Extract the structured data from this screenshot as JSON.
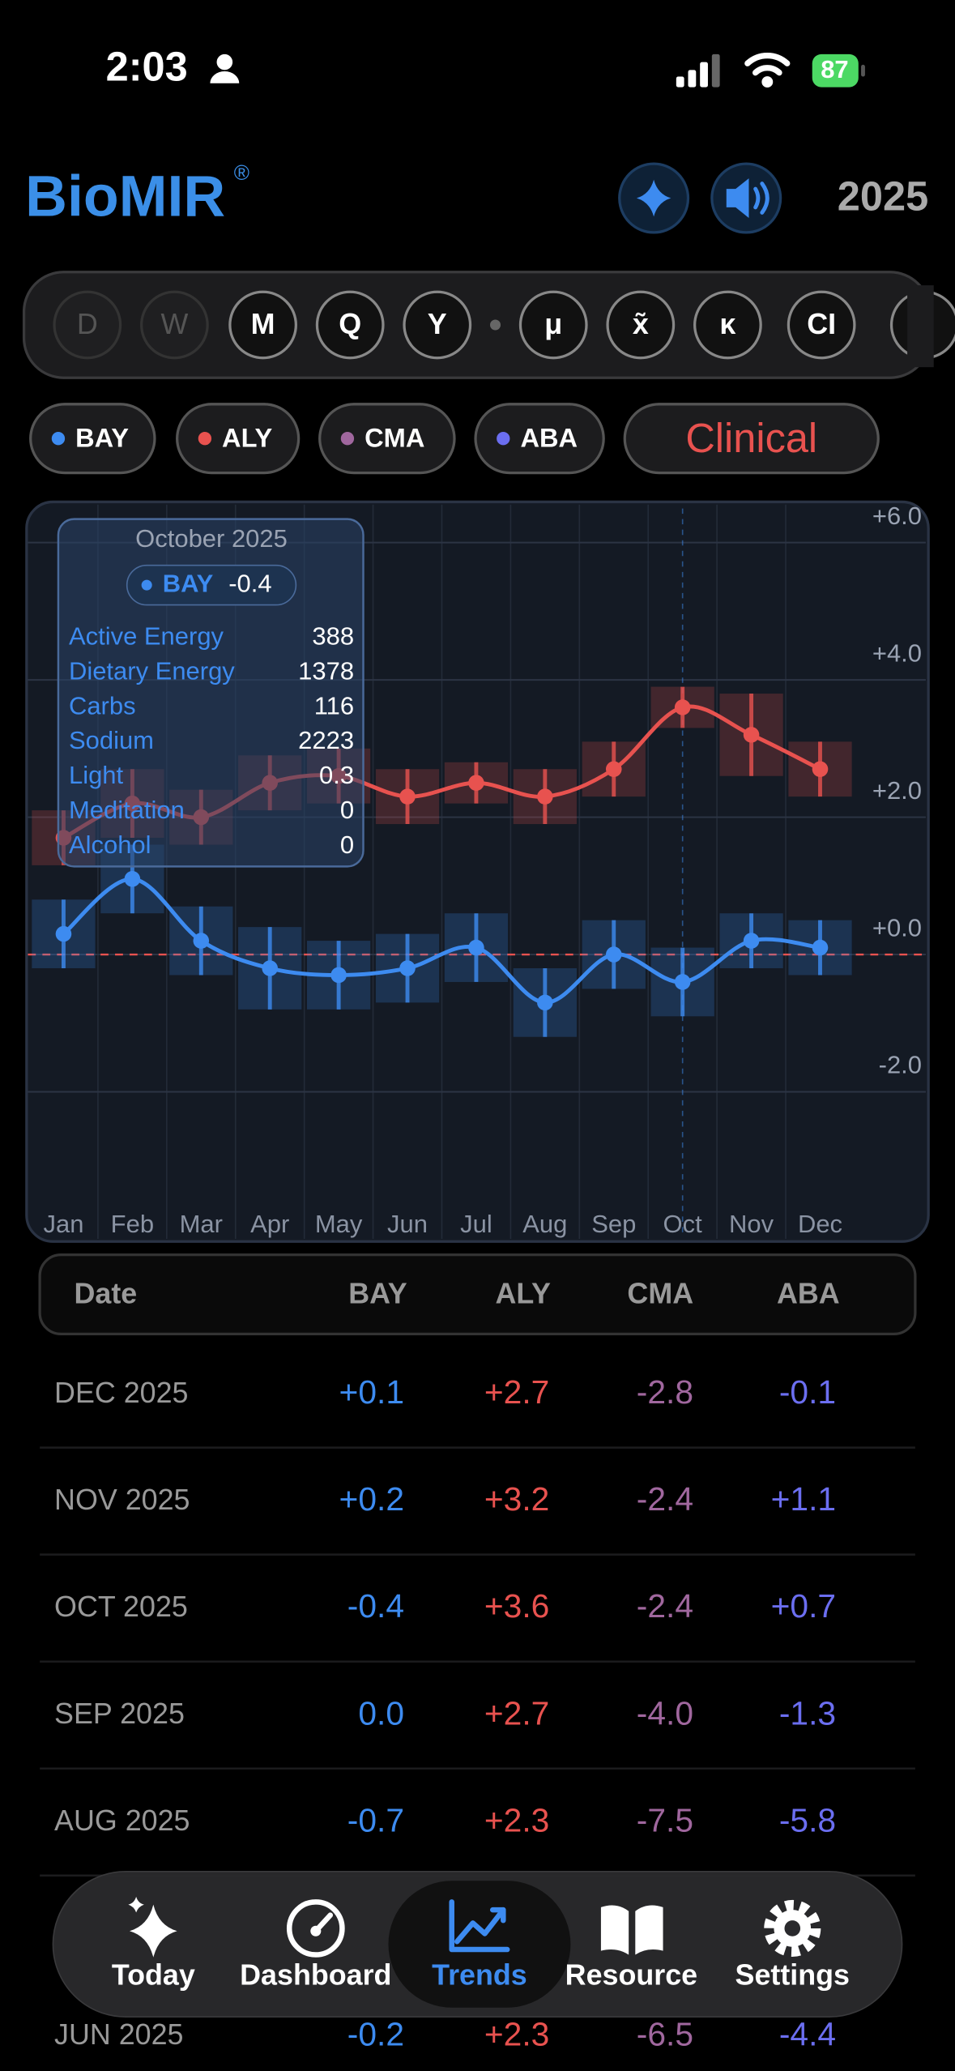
{
  "status_bar": {
    "time": "2:03",
    "battery": 87
  },
  "header": {
    "title": "BioMIR",
    "mark": "®",
    "year": "2025"
  },
  "period_buttons": [
    "D",
    "W",
    "M",
    "Q",
    "Y",
    "μ",
    "x̃",
    "κ",
    "CI"
  ],
  "series_buttons": [
    "BAY",
    "ALY",
    "CMA",
    "ABA"
  ],
  "clinical": "Clinical",
  "chart_data": {
    "type": "line",
    "categories": [
      "Jan",
      "Feb",
      "Mar",
      "Apr",
      "May",
      "Jun",
      "Jul",
      "Aug",
      "Sep",
      "Oct",
      "Nov",
      "Dec"
    ],
    "series": [
      {
        "name": "BAY",
        "color": "#3d8bf0",
        "values": [
          0.3,
          1.1,
          0.2,
          -0.2,
          -0.3,
          -0.2,
          0.1,
          -0.7,
          0.0,
          -0.4,
          0.2,
          0.1
        ],
        "errors": [
          0.5,
          0.5,
          0.5,
          0.6,
          0.5,
          0.5,
          0.5,
          0.5,
          0.5,
          0.5,
          0.4,
          0.4
        ]
      },
      {
        "name": "ALY",
        "color": "#e8524f",
        "values": [
          1.7,
          2.2,
          2.0,
          2.5,
          2.6,
          2.3,
          2.5,
          2.3,
          2.7,
          3.6,
          3.2,
          2.7
        ],
        "errors": [
          0.4,
          0.5,
          0.4,
          0.4,
          0.4,
          0.4,
          0.3,
          0.4,
          0.4,
          0.3,
          0.6,
          0.4
        ]
      }
    ],
    "ylim": [
      -4.2,
      6.6
    ],
    "yticks": [
      {
        "value": -2,
        "label": "-2.0"
      },
      {
        "value": 0,
        "label": "+0.0"
      },
      {
        "value": 2,
        "label": "+2.0"
      },
      {
        "value": 4,
        "label": "+4.0"
      },
      {
        "value": 6,
        "label": "+6.0"
      }
    ],
    "reference_line": 0,
    "grid": true
  },
  "tooltip": {
    "title": "October 2025",
    "series": "BAY",
    "value": -0.4,
    "rows": [
      [
        "Active Energy",
        388
      ],
      [
        "Dietary Energy",
        1378
      ],
      [
        "Carbs",
        116
      ],
      [
        "Sodium",
        2223
      ],
      [
        "Light",
        0.3
      ],
      [
        "Meditation",
        0
      ],
      [
        "Alcohol",
        0
      ]
    ]
  },
  "table": {
    "headers": [
      "Date",
      "BAY",
      "ALY",
      "CMA",
      "ABA"
    ],
    "rows": [
      [
        "DEC 2025",
        "+0.1",
        "+2.7",
        "-2.8",
        "-0.1"
      ],
      [
        "NOV 2025",
        "+0.2",
        "+3.2",
        "-2.4",
        "+1.1"
      ],
      [
        "OCT 2025",
        "-0.4",
        "+3.6",
        "-2.4",
        "+0.7"
      ],
      [
        "SEP 2025",
        "0.0",
        "+2.7",
        "-4.0",
        "-1.3"
      ],
      [
        "AUG 2025",
        "-0.7",
        "+2.3",
        "-7.5",
        "-5.8"
      ],
      [
        "JUN 2025",
        "-0.2",
        "+2.3",
        "-6.5",
        "-4.4"
      ]
    ]
  },
  "tab_bar": {
    "items": [
      "Today",
      "Dashboard",
      "Trends",
      "Resource",
      "Settings"
    ],
    "active": "Trends"
  }
}
